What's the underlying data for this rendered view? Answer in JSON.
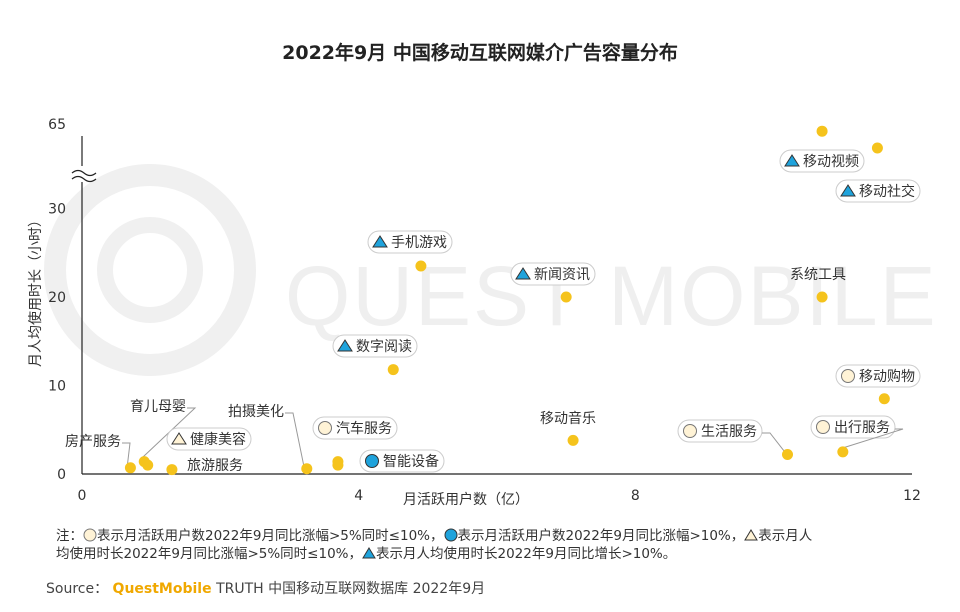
{
  "title": "2022年9月 中国移动互联网媒介广告容量分布",
  "watermark": "QUEST MOBILE",
  "colors": {
    "dot": "#f5c31c",
    "blue": "#1fa3dc",
    "cream": "#fff3d6",
    "axis": "#222222"
  },
  "chart_data": {
    "type": "scatter",
    "title": "2022年9月 中国移动互联网媒介广告容量分布",
    "xlabel": "月活跃用户数（亿）",
    "ylabel": "月人均使用时长（小时）",
    "xlim": [
      0,
      12
    ],
    "ylim": [
      0,
      65
    ],
    "y_axis_break": "30–65",
    "x_ticks": [
      "0",
      "4",
      "8",
      "12"
    ],
    "y_ticks": [
      "0",
      "10",
      "20",
      "30",
      "65"
    ],
    "grid": false,
    "points": [
      {
        "label": "移动视频",
        "x": 10.7,
        "y": 62,
        "marker": "blue-triangle"
      },
      {
        "label": "移动社交",
        "x": 11.5,
        "y": 55,
        "marker": "blue-triangle"
      },
      {
        "label": "手机游戏",
        "x": 4.9,
        "y": 23.5,
        "marker": "blue-triangle"
      },
      {
        "label": "新闻资讯",
        "x": 7.0,
        "y": 20.0,
        "marker": "blue-triangle"
      },
      {
        "label": "系统工具",
        "x": 10.7,
        "y": 20.0,
        "marker": "none"
      },
      {
        "label": "数字阅读",
        "x": 4.5,
        "y": 11.8,
        "marker": "blue-triangle"
      },
      {
        "label": "移动购物",
        "x": 11.6,
        "y": 8.5,
        "marker": "cream-circle"
      },
      {
        "label": "移动音乐",
        "x": 7.1,
        "y": 3.8,
        "marker": "none"
      },
      {
        "label": "生活服务",
        "x": 10.2,
        "y": 2.2,
        "marker": "cream-circle"
      },
      {
        "label": "出行服务",
        "x": 11.0,
        "y": 2.5,
        "marker": "cream-circle"
      },
      {
        "label": "房产服务",
        "x": 0.7,
        "y": 0.7,
        "marker": "none"
      },
      {
        "label": "育儿母婴",
        "x": 0.9,
        "y": 1.4,
        "marker": "none"
      },
      {
        "label": "健康美容",
        "x": 0.95,
        "y": 1.0,
        "marker": "triangle"
      },
      {
        "label": "旅游服务",
        "x": 1.3,
        "y": 0.5,
        "marker": "none"
      },
      {
        "label": "拍摄美化",
        "x": 3.25,
        "y": 0.6,
        "marker": "none"
      },
      {
        "label": "汽车服务",
        "x": 3.7,
        "y": 1.4,
        "marker": "cream-circle"
      },
      {
        "label": "智能设备",
        "x": 3.7,
        "y": 1.0,
        "marker": "blue-circle"
      }
    ]
  },
  "notes": {
    "line1_a": "注：",
    "line1_b": "表示月活跃用户数2022年9月同比涨幅>5%同时≤10%，",
    "line1_c": "表示月活跃用户数2022年9月同比涨幅>10%，",
    "line1_d": "表示月人",
    "line2_a": "均使用时长2022年9月同比涨幅>5%同时≤10%，",
    "line2_b": "表示月人均使用时长2022年9月同比增长>10%。"
  },
  "source": {
    "prefix": "Source：",
    "brand": "QuestMobile",
    "rest": "TRUTH 中国移动互联网数据库 2022年9月"
  }
}
